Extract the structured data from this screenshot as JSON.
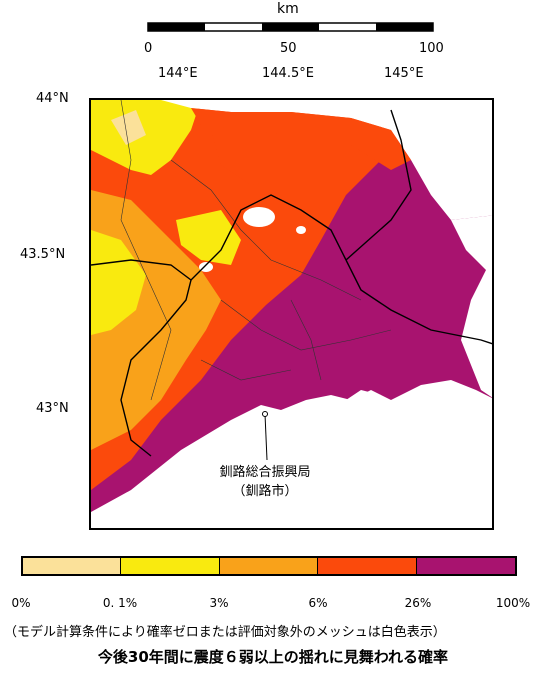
{
  "scale_bar": {
    "unit": "km",
    "ticks": [
      "0",
      "50",
      "100"
    ]
  },
  "longitude_labels": [
    "144°E",
    "144.5°E",
    "145°E"
  ],
  "latitude_labels": [
    "44°N",
    "43.5°N",
    "43°N"
  ],
  "office": {
    "name": "釧路総合振興局",
    "city": "（釧路市）"
  },
  "legend": {
    "colors": [
      "#fbe19a",
      "#f9ea0f",
      "#f9a21a",
      "#fb4a0c",
      "#a8136f"
    ],
    "ticks": [
      "0%",
      "0. 1%",
      "3%",
      "6%",
      "26%",
      "100%"
    ]
  },
  "note": "（モデル計算条件により確率ゼロまたは評価対象外のメッシュは白色表示）",
  "title": "今後30年間に震度６弱以上の揺れに見舞われる確率"
}
